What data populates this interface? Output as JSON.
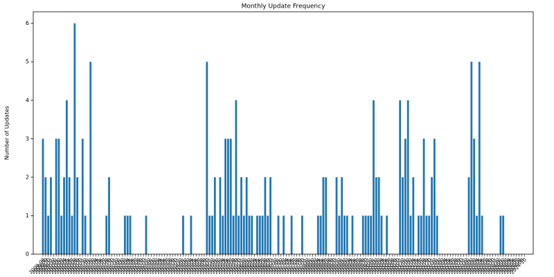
{
  "chart_data": {
    "type": "bar",
    "title": "Monthly Update Frequency",
    "y_label": "Number of Updates",
    "categories": [
      "2009-08",
      "2009-09",
      "2009-10",
      "2009-11",
      "2009-12",
      "2010-01",
      "2010-02",
      "2010-03",
      "2010-04",
      "2010-05",
      "2010-06",
      "2010-07",
      "2010-08",
      "2010-09",
      "2010-10",
      "2010-11",
      "2010-12",
      "2011-01",
      "2011-02",
      "2011-03",
      "2011-04",
      "2011-05",
      "2011-06",
      "2011-07",
      "2011-08",
      "2011-09",
      "2011-10",
      "2011-11",
      "2011-12",
      "2012-01",
      "2012-02",
      "2012-03",
      "2012-04",
      "2012-05",
      "2012-06",
      "2012-07",
      "2012-08",
      "2012-09",
      "2012-10",
      "2012-11",
      "2012-12",
      "2013-01",
      "2013-02",
      "2013-03",
      "2013-04",
      "2013-05",
      "2013-06",
      "2013-07",
      "2013-08",
      "2013-09",
      "2013-10",
      "2013-11",
      "2013-12",
      "2014-01",
      "2014-02",
      "2014-03",
      "2014-04",
      "2014-05",
      "2014-06",
      "2014-07",
      "2014-08",
      "2014-09",
      "2014-10",
      "2014-11",
      "2014-12",
      "2015-01",
      "2015-02",
      "2015-03",
      "2015-04",
      "2015-05",
      "2015-06",
      "2015-07",
      "2015-08",
      "2015-09",
      "2015-10",
      "2015-11",
      "2015-12",
      "2016-01",
      "2016-02",
      "2016-03",
      "2016-04",
      "2016-05",
      "2016-06",
      "2016-07",
      "2016-08",
      "2016-09",
      "2016-10",
      "2016-11",
      "2016-12",
      "2017-01",
      "2017-02",
      "2017-03",
      "2017-04",
      "2017-05",
      "2017-06",
      "2017-07",
      "2017-08",
      "2017-09",
      "2017-10",
      "2017-11",
      "2017-12",
      "2018-01",
      "2018-02",
      "2018-03",
      "2018-04",
      "2018-05",
      "2018-06",
      "2018-07",
      "2018-08",
      "2018-09",
      "2018-10",
      "2018-11",
      "2018-12",
      "2019-01",
      "2019-02",
      "2019-03",
      "2019-04",
      "2019-05",
      "2019-06",
      "2019-07",
      "2019-08",
      "2019-09",
      "2019-10",
      "2019-11",
      "2019-12",
      "2020-01",
      "2020-02",
      "2020-03",
      "2020-04",
      "2020-05",
      "2020-06",
      "2020-07",
      "2020-08",
      "2020-09",
      "2020-10",
      "2020-11",
      "2020-12",
      "2021-01",
      "2021-02",
      "2021-03",
      "2021-04",
      "2021-05",
      "2021-06",
      "2021-07",
      "2021-08",
      "2021-09",
      "2021-10",
      "2021-11",
      "2021-12",
      "2022-01",
      "2022-02",
      "2022-03",
      "2022-04",
      "2022-05",
      "2022-06",
      "2022-07",
      "2022-08",
      "2022-09",
      "2022-10",
      "2022-11",
      "2022-12",
      "2023-01",
      "2023-02",
      "2023-03",
      "2023-04",
      "2023-05",
      "2023-06",
      "2023-07",
      "2023-08",
      "2023-09",
      "2023-10",
      "2023-11",
      "2023-12",
      "2024-01",
      "2024-02",
      "2024-03",
      "2024-04",
      "2024-05",
      "2024-06",
      "2024-07",
      "2024-08",
      "2024-09",
      "2024-10"
    ],
    "values": [
      3,
      2,
      1,
      2,
      0,
      3,
      3,
      1,
      2,
      4,
      2,
      1,
      6,
      2,
      0,
      3,
      1,
      0,
      5,
      0,
      0,
      0,
      0,
      0,
      1,
      2,
      0,
      0,
      0,
      0,
      0,
      1,
      1,
      1,
      0,
      0,
      0,
      0,
      0,
      1,
      0,
      0,
      0,
      0,
      0,
      0,
      0,
      0,
      0,
      0,
      0,
      0,
      0,
      1,
      0,
      0,
      1,
      0,
      0,
      0,
      0,
      0,
      5,
      1,
      1,
      2,
      0,
      2,
      1,
      3,
      3,
      3,
      1,
      4,
      1,
      2,
      1,
      2,
      1,
      1,
      0,
      1,
      1,
      1,
      2,
      1,
      2,
      0,
      0,
      1,
      0,
      1,
      0,
      0,
      1,
      0,
      0,
      0,
      1,
      0,
      0,
      0,
      0,
      0,
      1,
      1,
      2,
      2,
      0,
      0,
      0,
      2,
      1,
      2,
      1,
      1,
      0,
      1,
      0,
      0,
      0,
      1,
      1,
      1,
      1,
      4,
      2,
      2,
      1,
      0,
      1,
      0,
      0,
      0,
      0,
      4,
      2,
      3,
      4,
      1,
      2,
      0,
      1,
      1,
      3,
      1,
      1,
      2,
      3,
      1,
      0,
      0,
      0,
      0,
      0,
      0,
      0,
      0,
      0,
      0,
      0,
      2,
      5,
      3,
      1,
      5,
      1,
      0,
      0,
      0,
      0,
      0,
      0,
      1,
      1,
      0,
      0,
      0,
      0,
      0,
      0,
      0,
      0
    ],
    "color": "#1f77b4",
    "ylim": [
      0,
      6.3
    ],
    "yticks": [
      0,
      1,
      2,
      3,
      4,
      5,
      6
    ],
    "grid": false
  }
}
